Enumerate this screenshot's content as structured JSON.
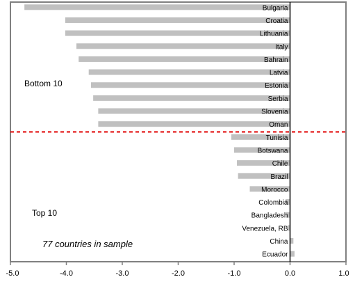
{
  "chart_data": {
    "type": "bar",
    "orientation": "horizontal",
    "categories": [
      "Bulgaria",
      "Croatia",
      "Lithuania",
      "Italy",
      "Bahrain",
      "Latvia",
      "Estonia",
      "Serbia",
      "Slovenia",
      "Oman",
      "Tunisia",
      "Botswana",
      "Chile",
      "Brazil",
      "Morocco",
      "Colombia",
      "Bangladesh",
      "Venezuela, RB",
      "China",
      "Ecuador"
    ],
    "values": [
      -4.75,
      -4.02,
      -4.02,
      -3.82,
      -3.78,
      -3.6,
      -3.56,
      -3.52,
      -3.43,
      -3.43,
      -1.05,
      -1.0,
      -0.95,
      -0.93,
      -0.72,
      -0.08,
      -0.07,
      -0.04,
      0.06,
      0.08
    ],
    "xlim": [
      -5.0,
      1.0
    ],
    "xticks": [
      "-5.0",
      "-4.0",
      "-3.0",
      "-2.0",
      "-1.0",
      "0.0",
      "1.0"
    ],
    "grid": false,
    "bar_color": "#c0c0c0",
    "divider_color": "#e00000",
    "annotations": {
      "bottom_group": "Bottom 10",
      "top_group": "Top 10",
      "sample_note": "77 countries in sample"
    }
  }
}
